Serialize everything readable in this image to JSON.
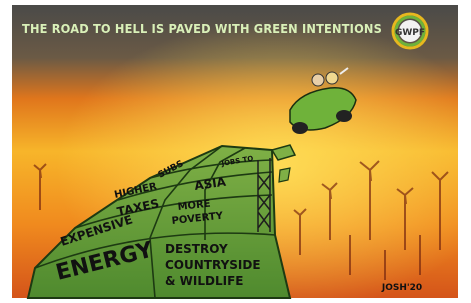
{
  "cartoon": {
    "title": "THE ROAD TO HELL IS PAVED WITH GREEN INTENTIONS",
    "logo": "GWPF",
    "signature": "JOSH'20",
    "road_signs": [
      {
        "lines": [
          "EXPENSIVE",
          "ENERGY"
        ]
      },
      {
        "lines": [
          "DESTROY",
          "COUNTRYSIDE",
          "& WILDLIFE"
        ]
      },
      {
        "lines": [
          "HIGHER",
          "TAXES"
        ]
      },
      {
        "lines": [
          "MORE",
          "POVERTY"
        ]
      },
      {
        "lines": [
          "JOBS TO",
          "ASIA"
        ]
      },
      {
        "lines": [
          "SUBS"
        ]
      }
    ]
  }
}
